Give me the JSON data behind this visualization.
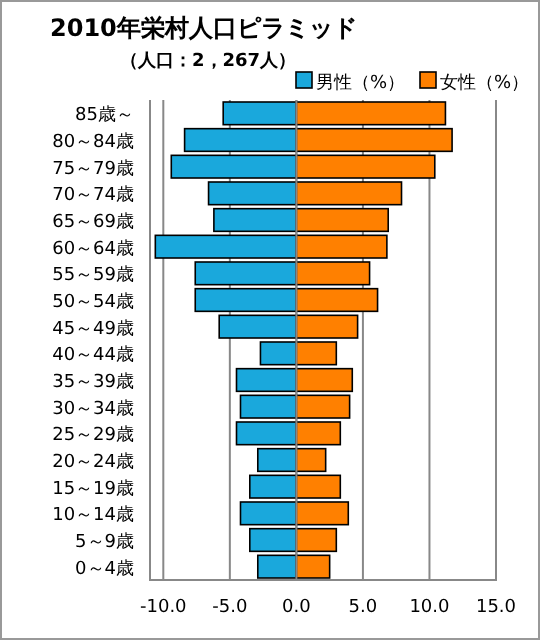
{
  "chart_data": {
    "type": "bar",
    "orientation": "horizontal",
    "stacked": true,
    "title": "2010年栄村人口ピラミッド",
    "subtitle": "（人口：2，267人）",
    "categories": [
      "85歳～",
      "80～84歳",
      "75～79歳",
      "70～74歳",
      "65～69歳",
      "60～64歳",
      "55～59歳",
      "50～54歳",
      "45～49歳",
      "40～44歳",
      "35～39歳",
      "30～34歳",
      "25～29歳",
      "20～24歳",
      "15～19歳",
      "10～14歳",
      "5～9歳",
      "0～4歳"
    ],
    "series": [
      {
        "name": "男性（%）",
        "color": "#1aa8dc",
        "values": [
          -5.5,
          -8.4,
          -9.4,
          -6.6,
          -6.2,
          -10.6,
          -7.6,
          -7.6,
          -5.8,
          -2.7,
          -4.5,
          -4.2,
          -4.5,
          -2.9,
          -3.5,
          -4.2,
          -3.5,
          -2.9
        ]
      },
      {
        "name": "女性（%）",
        "color": "#ff8000",
        "values": [
          11.2,
          11.7,
          10.4,
          7.9,
          6.9,
          6.8,
          5.5,
          6.1,
          4.6,
          3.0,
          4.2,
          4.0,
          3.3,
          2.2,
          3.3,
          3.9,
          3.0,
          2.5
        ]
      }
    ],
    "xlim": [
      -11,
      15
    ],
    "xticks": [
      {
        "value": -10,
        "label": "-10.0"
      },
      {
        "value": -5,
        "label": "-5.0"
      },
      {
        "value": 0,
        "label": "0.0"
      },
      {
        "value": 5,
        "label": "5.0"
      },
      {
        "value": 10,
        "label": "10.0"
      },
      {
        "value": 15,
        "label": "15.0"
      }
    ],
    "grid": "x",
    "legend": "top right"
  }
}
